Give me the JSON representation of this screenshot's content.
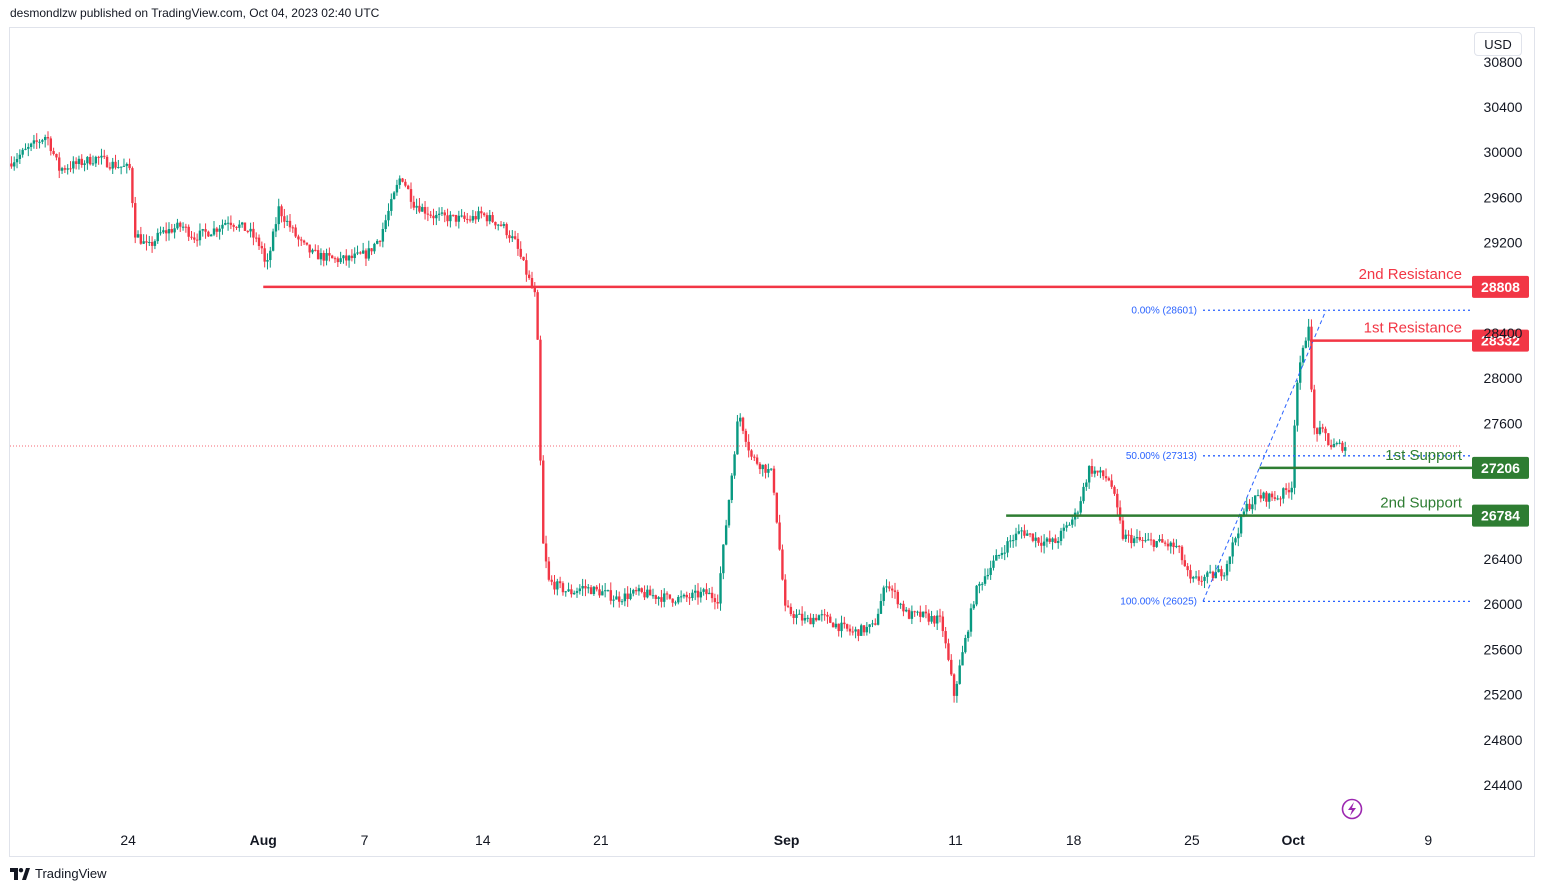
{
  "header": {
    "publisher_text": "desmondlzw published on TradingView.com, Oct 04, 2023 02:40 UTC"
  },
  "currency_button": {
    "label": "USD"
  },
  "footer": {
    "brand": "TradingView"
  },
  "colors": {
    "resistance": "#f23645",
    "support": "#2e7d32",
    "up": "#089981",
    "down": "#f23645",
    "fib": "#2962ff",
    "axis_text": "#131722"
  },
  "chart_data": {
    "type": "candlestick",
    "title": "",
    "xlabel": "",
    "ylabel": "",
    "ylim": [
      24000,
      30900
    ],
    "grid": false,
    "x_range": [
      "2023-07-17",
      "2023-10-11"
    ],
    "y_ticks": [
      30800,
      30400,
      30000,
      29600,
      29200,
      28400,
      28000,
      27600,
      26400,
      26000,
      25600,
      25200,
      24800,
      24400
    ],
    "x_ticks": [
      {
        "label": "24",
        "date": "2023-07-24",
        "bold": false
      },
      {
        "label": "Aug",
        "date": "2023-08-01",
        "bold": true
      },
      {
        "label": "7",
        "date": "2023-08-07",
        "bold": false
      },
      {
        "label": "14",
        "date": "2023-08-14",
        "bold": false
      },
      {
        "label": "21",
        "date": "2023-08-21",
        "bold": false
      },
      {
        "label": "Sep",
        "date": "2023-09-01",
        "bold": true
      },
      {
        "label": "11",
        "date": "2023-09-11",
        "bold": false
      },
      {
        "label": "18",
        "date": "2023-09-18",
        "bold": false
      },
      {
        "label": "25",
        "date": "2023-09-25",
        "bold": false
      },
      {
        "label": "Oct",
        "date": "2023-10-01",
        "bold": true
      },
      {
        "label": "9",
        "date": "2023-10-09",
        "bold": false
      }
    ],
    "price_path": [
      [
        "2023-07-17",
        29900
      ],
      [
        "2023-07-19",
        30150
      ],
      [
        "2023-07-20",
        29850
      ],
      [
        "2023-07-22",
        29950
      ],
      [
        "2023-07-23",
        29900
      ],
      [
        "2023-07-24",
        29850
      ],
      [
        "2023-07-24",
        29300
      ],
      [
        "2023-07-25",
        29150
      ],
      [
        "2023-07-26",
        29280
      ],
      [
        "2023-07-27",
        29350
      ],
      [
        "2023-07-28",
        29250
      ],
      [
        "2023-07-29",
        29320
      ],
      [
        "2023-07-30",
        29400
      ],
      [
        "2023-07-31",
        29300
      ],
      [
        "2023-08-01",
        29150
      ],
      [
        "2023-08-01",
        28950
      ],
      [
        "2023-08-02",
        29500
      ],
      [
        "2023-08-03",
        29200
      ],
      [
        "2023-08-04",
        29100
      ],
      [
        "2023-08-05",
        29050
      ],
      [
        "2023-08-06",
        29050
      ],
      [
        "2023-08-07",
        29100
      ],
      [
        "2023-08-08",
        29250
      ],
      [
        "2023-08-09",
        29800
      ],
      [
        "2023-08-10",
        29550
      ],
      [
        "2023-08-11",
        29430
      ],
      [
        "2023-08-12",
        29420
      ],
      [
        "2023-08-13",
        29400
      ],
      [
        "2023-08-14",
        29450
      ],
      [
        "2023-08-15",
        29350
      ],
      [
        "2023-08-16",
        29200
      ],
      [
        "2023-08-17",
        28700
      ],
      [
        "2023-08-17",
        27900
      ],
      [
        "2023-08-17",
        26600
      ],
      [
        "2023-08-18",
        26200
      ],
      [
        "2023-08-19",
        26100
      ],
      [
        "2023-08-20",
        26150
      ],
      [
        "2023-08-21",
        26100
      ],
      [
        "2023-08-22",
        26050
      ],
      [
        "2023-08-23",
        26100
      ],
      [
        "2023-08-24",
        26080
      ],
      [
        "2023-08-25",
        26050
      ],
      [
        "2023-08-26",
        26050
      ],
      [
        "2023-08-27",
        26100
      ],
      [
        "2023-08-28",
        26050
      ],
      [
        "2023-08-29",
        27700
      ],
      [
        "2023-08-30",
        27300
      ],
      [
        "2023-08-31",
        27150
      ],
      [
        "2023-09-01",
        25950
      ],
      [
        "2023-09-02",
        25850
      ],
      [
        "2023-09-03",
        25900
      ],
      [
        "2023-09-04",
        25800
      ],
      [
        "2023-09-05",
        25750
      ],
      [
        "2023-09-06",
        25800
      ],
      [
        "2023-09-07",
        26200
      ],
      [
        "2023-09-08",
        25900
      ],
      [
        "2023-09-09",
        25900
      ],
      [
        "2023-09-10",
        25850
      ],
      [
        "2023-09-11",
        25200
      ],
      [
        "2023-09-12",
        26100
      ],
      [
        "2023-09-13",
        26300
      ],
      [
        "2023-09-14",
        26550
      ],
      [
        "2023-09-15",
        26650
      ],
      [
        "2023-09-16",
        26550
      ],
      [
        "2023-09-17",
        26550
      ],
      [
        "2023-09-18",
        26800
      ],
      [
        "2023-09-19",
        27200
      ],
      [
        "2023-09-20",
        27100
      ],
      [
        "2023-09-21",
        26600
      ],
      [
        "2023-09-22",
        26550
      ],
      [
        "2023-09-23",
        26550
      ],
      [
        "2023-09-24",
        26500
      ],
      [
        "2023-09-25",
        26200
      ],
      [
        "2023-09-26",
        26250
      ],
      [
        "2023-09-27",
        26300
      ],
      [
        "2023-09-28",
        26850
      ],
      [
        "2023-09-29",
        26950
      ],
      [
        "2023-09-30",
        26950
      ],
      [
        "2023-10-01",
        27050
      ],
      [
        "2023-10-01",
        27900
      ],
      [
        "2023-10-02",
        28500
      ],
      [
        "2023-10-02",
        27550
      ],
      [
        "2023-10-03",
        27500
      ],
      [
        "2023-10-03",
        27400
      ],
      [
        "2023-10-04",
        27400
      ]
    ],
    "last_price": 27400,
    "levels": [
      {
        "name": "2nd Resistance",
        "value": 28808,
        "kind": "resistance",
        "start": "2023-08-01"
      },
      {
        "name": "1st Resistance",
        "value": 28332,
        "kind": "resistance",
        "start": "2023-10-02"
      },
      {
        "name": "1st Support",
        "value": 27206,
        "kind": "support",
        "start": "2023-09-29"
      },
      {
        "name": "2nd Support",
        "value": 26784,
        "kind": "support",
        "start": "2023-09-14"
      }
    ],
    "fibonacci": [
      {
        "label": "0.00% (28601)",
        "value": 28601
      },
      {
        "label": "50.00% (27313)",
        "value": 27313
      },
      {
        "label": "100.00% (26025)",
        "value": 26025
      }
    ]
  }
}
